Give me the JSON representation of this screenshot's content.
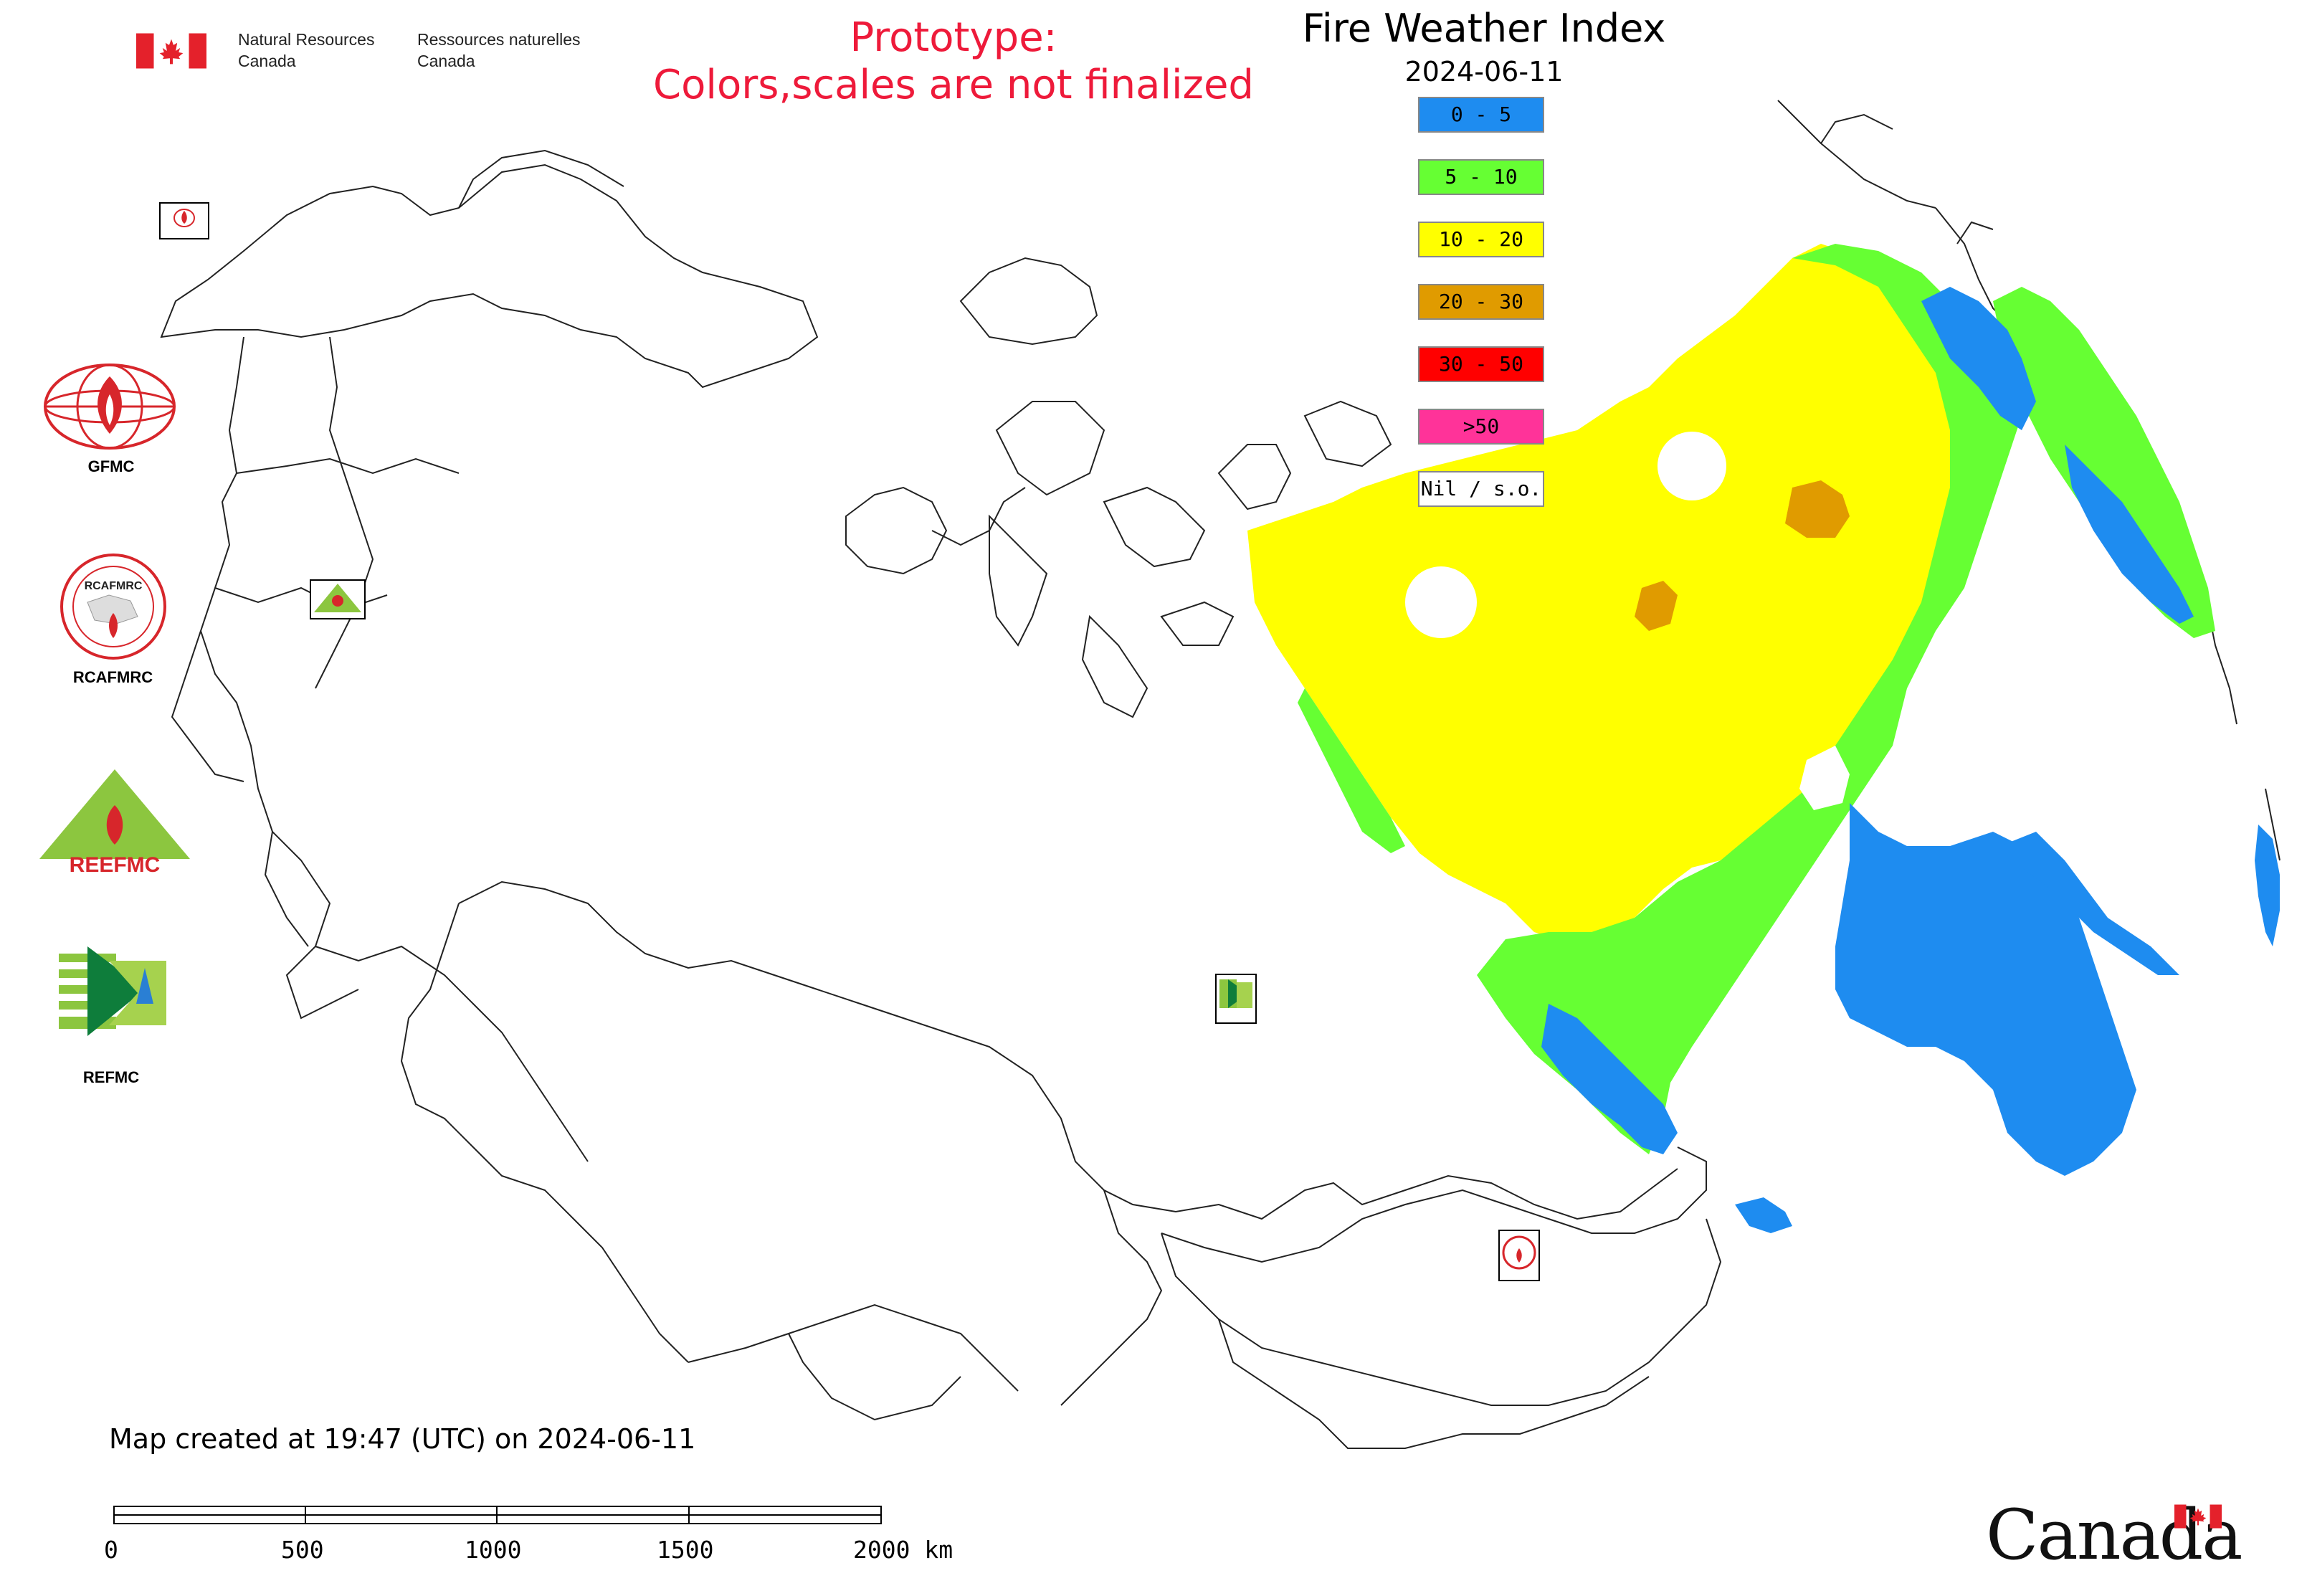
{
  "header": {
    "gov_en": [
      "Natural Resources",
      "Canada"
    ],
    "gov_fr": [
      "Ressources naturelles",
      "Canada"
    ],
    "prototype": [
      "Prototype:",
      "Colors,scales are not finalized"
    ]
  },
  "legend": {
    "title": "Fire Weather Index",
    "date": "2024-06-11",
    "items": [
      {
        "label": "0 - 5",
        "color": "#1e8cf0"
      },
      {
        "label": "5 - 10",
        "color": "#66ff33"
      },
      {
        "label": "10 - 20",
        "color": "#ffff00"
      },
      {
        "label": "20 - 30",
        "color": "#e09b00"
      },
      {
        "label": "30 - 50",
        "color": "#ff0000"
      },
      {
        "label": ">50",
        "color": "#ff3399"
      },
      {
        "label": "Nil / s.o.",
        "color": "#ffffff"
      }
    ]
  },
  "logos": {
    "gfmc": "GFMC",
    "rcafmrc": "RCAFMRC",
    "reefmc": "REEFMC",
    "refmc": "REFMC",
    "gfmc_small": "GFMC",
    "reefmc_small": "REEFMC",
    "refmc_small": "REFMC",
    "rcafmrc_small": "RCAFMRC",
    "rcafmrc_ring": "RCAFMRC"
  },
  "footer": {
    "created": "Map created at 19:47 (UTC) on 2024-06-11",
    "scale_labels": [
      "0",
      "500",
      "1000",
      "1500",
      "2000 km"
    ],
    "wordmark": "Canada"
  },
  "colors": {
    "fwi_0_5": "#1e8cf0",
    "fwi_5_10": "#66ff33",
    "fwi_10_20": "#ffff00",
    "fwi_20_30": "#e09b00",
    "prototype_red": "#ee1a3a",
    "canada_red": "#e4212b"
  }
}
